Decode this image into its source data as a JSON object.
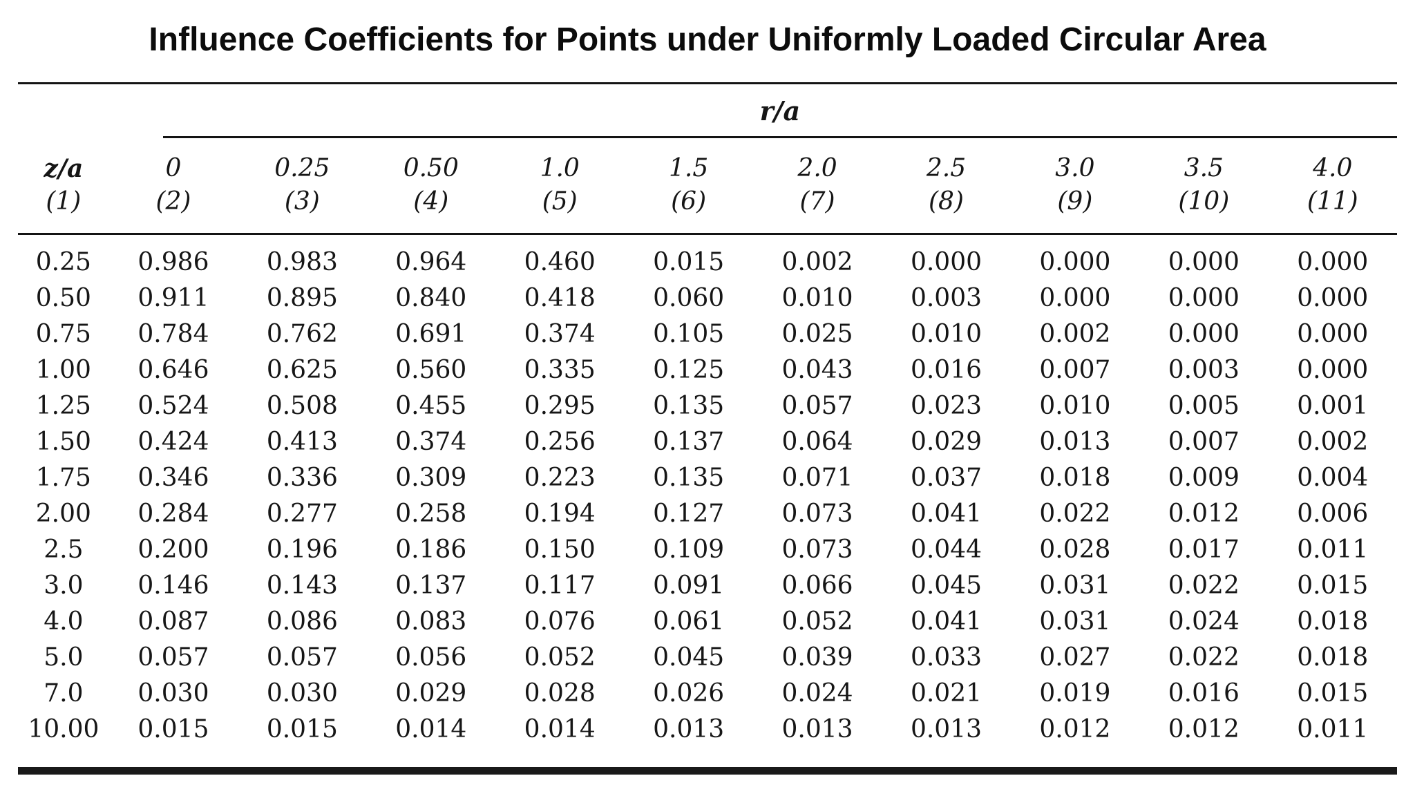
{
  "title": "Influence Coefficients for Points under Uniformly Loaded Circular Area",
  "table": {
    "group_header": "r/a",
    "row_header": {
      "label": "z/a",
      "number": "(1)"
    },
    "columns": [
      {
        "label": "0",
        "number": "(2)"
      },
      {
        "label": "0.25",
        "number": "(3)"
      },
      {
        "label": "0.50",
        "number": "(4)"
      },
      {
        "label": "1.0",
        "number": "(5)"
      },
      {
        "label": "1.5",
        "number": "(6)"
      },
      {
        "label": "2.0",
        "number": "(7)"
      },
      {
        "label": "2.5",
        "number": "(8)"
      },
      {
        "label": "3.0",
        "number": "(9)"
      },
      {
        "label": "3.5",
        "number": "(10)"
      },
      {
        "label": "4.0",
        "number": "(11)"
      }
    ],
    "rows": [
      {
        "z_a": "0.25",
        "values": [
          "0.986",
          "0.983",
          "0.964",
          "0.460",
          "0.015",
          "0.002",
          "0.000",
          "0.000",
          "0.000",
          "0.000"
        ]
      },
      {
        "z_a": "0.50",
        "values": [
          "0.911",
          "0.895",
          "0.840",
          "0.418",
          "0.060",
          "0.010",
          "0.003",
          "0.000",
          "0.000",
          "0.000"
        ]
      },
      {
        "z_a": "0.75",
        "values": [
          "0.784",
          "0.762",
          "0.691",
          "0.374",
          "0.105",
          "0.025",
          "0.010",
          "0.002",
          "0.000",
          "0.000"
        ]
      },
      {
        "z_a": "1.00",
        "values": [
          "0.646",
          "0.625",
          "0.560",
          "0.335",
          "0.125",
          "0.043",
          "0.016",
          "0.007",
          "0.003",
          "0.000"
        ]
      },
      {
        "z_a": "1.25",
        "values": [
          "0.524",
          "0.508",
          "0.455",
          "0.295",
          "0.135",
          "0.057",
          "0.023",
          "0.010",
          "0.005",
          "0.001"
        ]
      },
      {
        "z_a": "1.50",
        "values": [
          "0.424",
          "0.413",
          "0.374",
          "0.256",
          "0.137",
          "0.064",
          "0.029",
          "0.013",
          "0.007",
          "0.002"
        ]
      },
      {
        "z_a": "1.75",
        "values": [
          "0.346",
          "0.336",
          "0.309",
          "0.223",
          "0.135",
          "0.071",
          "0.037",
          "0.018",
          "0.009",
          "0.004"
        ]
      },
      {
        "z_a": "2.00",
        "values": [
          "0.284",
          "0.277",
          "0.258",
          "0.194",
          "0.127",
          "0.073",
          "0.041",
          "0.022",
          "0.012",
          "0.006"
        ]
      },
      {
        "z_a": "2.5",
        "values": [
          "0.200",
          "0.196",
          "0.186",
          "0.150",
          "0.109",
          "0.073",
          "0.044",
          "0.028",
          "0.017",
          "0.011"
        ]
      },
      {
        "z_a": "3.0",
        "values": [
          "0.146",
          "0.143",
          "0.137",
          "0.117",
          "0.091",
          "0.066",
          "0.045",
          "0.031",
          "0.022",
          "0.015"
        ]
      },
      {
        "z_a": "4.0",
        "values": [
          "0.087",
          "0.086",
          "0.083",
          "0.076",
          "0.061",
          "0.052",
          "0.041",
          "0.031",
          "0.024",
          "0.018"
        ]
      },
      {
        "z_a": "5.0",
        "values": [
          "0.057",
          "0.057",
          "0.056",
          "0.052",
          "0.045",
          "0.039",
          "0.033",
          "0.027",
          "0.022",
          "0.018"
        ]
      },
      {
        "z_a": "7.0",
        "values": [
          "0.030",
          "0.030",
          "0.029",
          "0.028",
          "0.026",
          "0.024",
          "0.021",
          "0.019",
          "0.016",
          "0.015"
        ]
      },
      {
        "z_a": "10.00",
        "values": [
          "0.015",
          "0.015",
          "0.014",
          "0.014",
          "0.013",
          "0.013",
          "0.013",
          "0.012",
          "0.012",
          "0.011"
        ]
      }
    ]
  },
  "colors": {
    "background": "#ffffff",
    "text": "#161616",
    "rule": "#141414"
  }
}
